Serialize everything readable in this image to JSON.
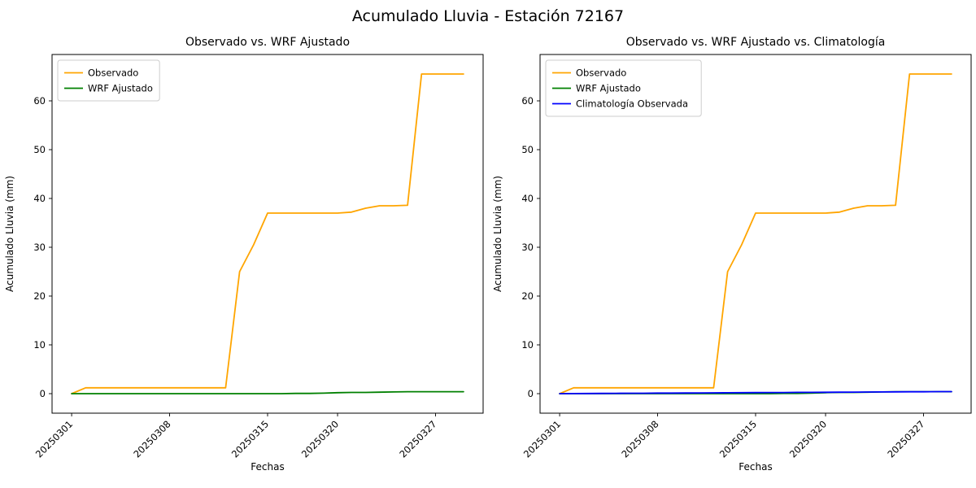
{
  "figure": {
    "title": "Acumulado Lluvia - Estación 72167"
  },
  "chart_data": [
    {
      "type": "line",
      "title": "Observado vs. WRF Ajustado",
      "xlabel": "Fechas",
      "ylabel": "Acumulado Lluvia (mm)",
      "grid": false,
      "legend_position": "upper-left",
      "ylim": [
        -4,
        69.5
      ],
      "y_ticks": [
        0,
        10,
        20,
        30,
        40,
        50,
        60
      ],
      "x": [
        "20250301",
        "20250302",
        "20250303",
        "20250304",
        "20250305",
        "20250306",
        "20250307",
        "20250308",
        "20250309",
        "20250310",
        "20250311",
        "20250312",
        "20250313",
        "20250314",
        "20250315",
        "20250316",
        "20250317",
        "20250318",
        "20250319",
        "20250320",
        "20250321",
        "20250322",
        "20250323",
        "20250324",
        "20250325",
        "20250326",
        "20250327",
        "20250328",
        "20250329"
      ],
      "x_tick_labels": [
        "20250301",
        "20250308",
        "20250315",
        "20250320",
        "20250327"
      ],
      "x_tick_indices": [
        0,
        7,
        14,
        19,
        26
      ],
      "series": [
        {
          "name": "Observado",
          "color": "#FFA500",
          "values": [
            0.0,
            1.2,
            1.2,
            1.2,
            1.2,
            1.2,
            1.2,
            1.2,
            1.2,
            1.2,
            1.2,
            1.2,
            25.0,
            30.5,
            37.0,
            37.0,
            37.0,
            37.0,
            37.0,
            37.0,
            37.2,
            38.0,
            38.5,
            38.5,
            38.6,
            65.5,
            65.5,
            65.5,
            65.5
          ]
        },
        {
          "name": "WRF Ajustado",
          "color": "#008000",
          "values": [
            0.0,
            0.0,
            0.0,
            0.0,
            0.0,
            0.0,
            0.0,
            0.0,
            0.0,
            0.0,
            0.0,
            0.0,
            0.0,
            0.0,
            0.0,
            0.0,
            0.05,
            0.05,
            0.1,
            0.2,
            0.25,
            0.25,
            0.3,
            0.35,
            0.4,
            0.4,
            0.4,
            0.4,
            0.4
          ]
        }
      ]
    },
    {
      "type": "line",
      "title": "Observado vs. WRF Ajustado vs. Climatología",
      "xlabel": "Fechas",
      "ylabel": "Acumulado Lluvia (mm)",
      "grid": false,
      "legend_position": "upper-left",
      "ylim": [
        -4,
        69.5
      ],
      "y_ticks": [
        0,
        10,
        20,
        30,
        40,
        50,
        60
      ],
      "x": [
        "20250301",
        "20250302",
        "20250303",
        "20250304",
        "20250305",
        "20250306",
        "20250307",
        "20250308",
        "20250309",
        "20250310",
        "20250311",
        "20250312",
        "20250313",
        "20250314",
        "20250315",
        "20250316",
        "20250317",
        "20250318",
        "20250319",
        "20250320",
        "20250321",
        "20250322",
        "20250323",
        "20250324",
        "20250325",
        "20250326",
        "20250327",
        "20250328",
        "20250329"
      ],
      "x_tick_labels": [
        "20250301",
        "20250308",
        "20250315",
        "20250320",
        "20250327"
      ],
      "x_tick_indices": [
        0,
        7,
        14,
        19,
        26
      ],
      "series": [
        {
          "name": "Observado",
          "color": "#FFA500",
          "values": [
            0.0,
            1.2,
            1.2,
            1.2,
            1.2,
            1.2,
            1.2,
            1.2,
            1.2,
            1.2,
            1.2,
            1.2,
            25.0,
            30.5,
            37.0,
            37.0,
            37.0,
            37.0,
            37.0,
            37.0,
            37.2,
            38.0,
            38.5,
            38.5,
            38.6,
            65.5,
            65.5,
            65.5,
            65.5
          ]
        },
        {
          "name": "WRF Ajustado",
          "color": "#008000",
          "values": [
            0.0,
            0.0,
            0.0,
            0.0,
            0.0,
            0.0,
            0.0,
            0.0,
            0.0,
            0.0,
            0.0,
            0.0,
            0.0,
            0.0,
            0.0,
            0.0,
            0.05,
            0.05,
            0.1,
            0.2,
            0.25,
            0.25,
            0.3,
            0.35,
            0.4,
            0.4,
            0.4,
            0.4,
            0.4
          ]
        },
        {
          "name": "Climatología Observada",
          "color": "#0000FF",
          "values": [
            0.0,
            0.02,
            0.03,
            0.05,
            0.06,
            0.08,
            0.09,
            0.11,
            0.12,
            0.14,
            0.15,
            0.17,
            0.18,
            0.2,
            0.21,
            0.23,
            0.24,
            0.26,
            0.27,
            0.29,
            0.3,
            0.32,
            0.33,
            0.35,
            0.36,
            0.38,
            0.39,
            0.41,
            0.42
          ]
        }
      ]
    }
  ]
}
